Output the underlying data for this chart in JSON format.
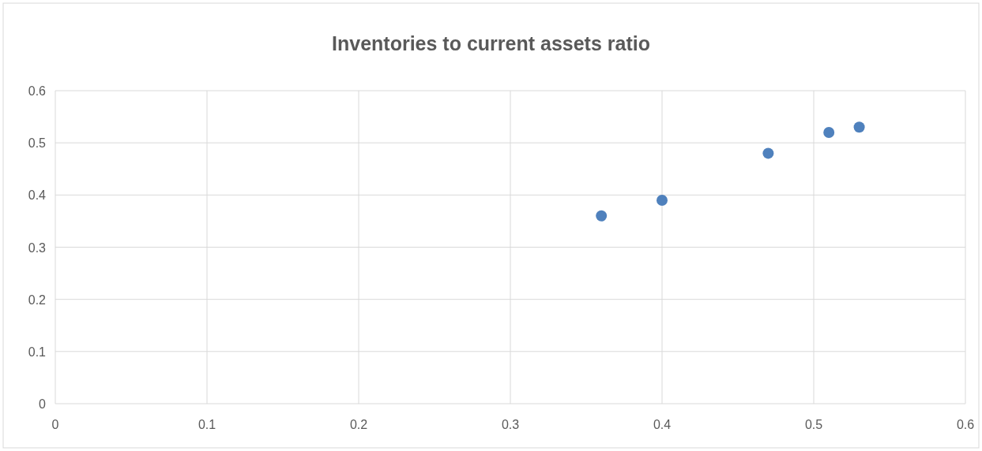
{
  "chart_data": {
    "type": "scatter",
    "title": "Inventories to current assets ratio",
    "x": [
      0.36,
      0.4,
      0.47,
      0.51,
      0.53
    ],
    "series": [
      {
        "color": "#4f81bd",
        "values": [
          0.36,
          0.39,
          0.48,
          0.52,
          0.53
        ]
      }
    ],
    "xlim": [
      0,
      0.6
    ],
    "xticks": [
      0,
      0.1,
      0.2,
      0.3,
      0.4,
      0.5,
      0.6
    ],
    "ylim": [
      0,
      0.6
    ],
    "yticks": [
      0,
      0.1,
      0.2,
      0.3,
      0.4,
      0.5,
      0.6
    ],
    "grid": true,
    "marker": "circle"
  }
}
